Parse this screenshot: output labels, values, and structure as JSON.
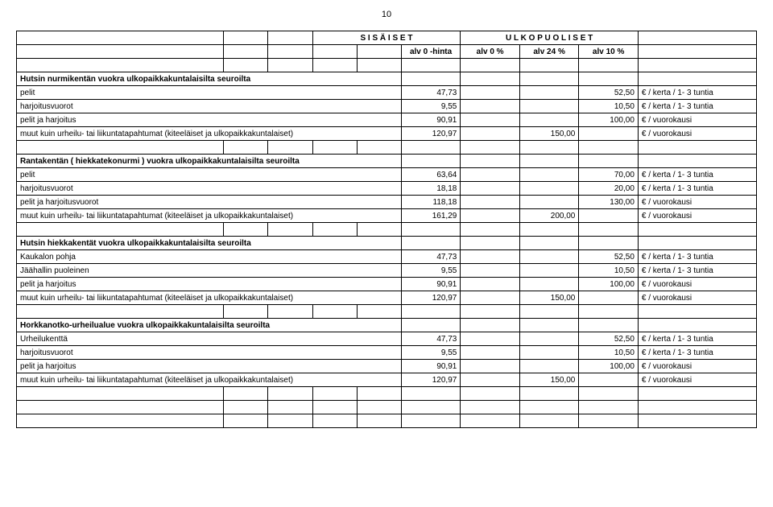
{
  "page_number": "10",
  "headers": {
    "sisaiset": "S I S Ä I S E T",
    "ulkopuoliset": "U L K O P U O L I S E T",
    "alv0hinta": "alv 0 -hinta",
    "alv0": "alv  0 %",
    "alv24": "alv 24 %",
    "alv10": "alv 10 %"
  },
  "sections": {
    "s1": {
      "title": "Hutsin nurmikentän vuokra ulkopaikkakuntalaisilta seuroilta",
      "rows": [
        {
          "label": "pelit",
          "c1": "47,73",
          "c2": "",
          "c3": "52,50",
          "unit": "€ / kerta / 1- 3  tuntia"
        },
        {
          "label": "harjoitusvuorot",
          "c1": "9,55",
          "c2": "",
          "c3": "10,50",
          "unit": "€ / kerta / 1- 3  tuntia"
        },
        {
          "label": "pelit ja harjoitus",
          "c1": "90,91",
          "c2": "",
          "c3": "100,00",
          "unit": "€ / vuorokausi"
        },
        {
          "label": "muut kuin urheilu- tai liikuntatapahtumat (kiteeläiset ja ulkopaikkakuntalaiset)",
          "c1": "120,97",
          "c2": "150,00",
          "c3": "",
          "unit": "€ / vuorokausi"
        }
      ]
    },
    "s2": {
      "title": "Rantakentän ( hiekkatekonurmi ) vuokra ulkopaikkakuntalaisilta seuroilta",
      "rows": [
        {
          "label": "pelit",
          "c1": "63,64",
          "c2": "",
          "c3": "70,00",
          "unit": "€ / kerta / 1- 3  tuntia"
        },
        {
          "label": "harjoitusvuorot",
          "c1": "18,18",
          "c2": "",
          "c3": "20,00",
          "unit": "€ / kerta / 1- 3  tuntia"
        },
        {
          "label": "pelit ja harjoitusvuorot",
          "c1": "118,18",
          "c2": "",
          "c3": "130,00",
          "unit": "€ / vuorokausi"
        },
        {
          "label": "muut kuin urheilu- tai liikuntatapahtumat (kiteeläiset ja ulkopaikkakuntalaiset)",
          "c1": "161,29",
          "c2": "200,00",
          "c3": "",
          "unit": "€ / vuorokausi"
        }
      ]
    },
    "s3": {
      "title": "Hutsin hiekkakentät  vuokra ulkopaikkakuntalaisilta seuroilta",
      "rows": [
        {
          "label": "Kaukalon pohja",
          "c1": "47,73",
          "c2": "",
          "c3": "52,50",
          "unit": "€ / kerta / 1- 3  tuntia"
        },
        {
          "label": "Jäähallin puoleinen",
          "c1": "9,55",
          "c2": "",
          "c3": "10,50",
          "unit": "€ / kerta / 1- 3  tuntia"
        },
        {
          "label": "pelit ja harjoitus",
          "c1": "90,91",
          "c2": "",
          "c3": "100,00",
          "unit": "€ / vuorokausi"
        },
        {
          "label": "muut kuin urheilu- tai liikuntatapahtumat (kiteeläiset ja ulkopaikkakuntalaiset)",
          "c1": "120,97",
          "c2": "150,00",
          "c3": "",
          "unit": "€ / vuorokausi"
        }
      ]
    },
    "s4": {
      "title": "Horkkanotko-urheilualue vuokra ulkopaikkakuntalaisilta seuroilta",
      "rows": [
        {
          "label": "Urheilukenttä",
          "c1": "47,73",
          "c2": "",
          "c3": "52,50",
          "unit": "€ / kerta / 1- 3  tuntia"
        },
        {
          "label": "harjoitusvuorot",
          "c1": "9,55",
          "c2": "",
          "c3": "10,50",
          "unit": "€ / kerta / 1- 3  tuntia"
        },
        {
          "label": "pelit ja harjoitus",
          "c1": "90,91",
          "c2": "",
          "c3": "100,00",
          "unit": "€ / vuorokausi"
        },
        {
          "label": "muut kuin urheilu- tai liikuntatapahtumat (kiteeläiset ja ulkopaikkakuntalaiset)",
          "c1": "120,97",
          "c2": "150,00",
          "c3": "",
          "unit": "€ / vuorokausi"
        }
      ]
    }
  }
}
